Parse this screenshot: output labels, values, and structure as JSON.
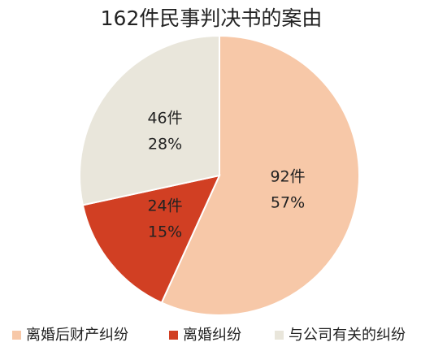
{
  "chart_data": {
    "type": "pie",
    "title": "162件民事判决书的案由",
    "categories": [
      "离婚后财产纠纷",
      "离婚纠纷",
      "与公司有关的纠纷"
    ],
    "values": [
      92,
      24,
      46
    ],
    "value_labels": [
      "92件",
      "24件",
      "46件"
    ],
    "percent_labels": [
      "57%",
      "15%",
      "28%"
    ],
    "colors": [
      "#f7c8a8",
      "#d13f23",
      "#e9e6db"
    ],
    "legend": "bottom"
  }
}
